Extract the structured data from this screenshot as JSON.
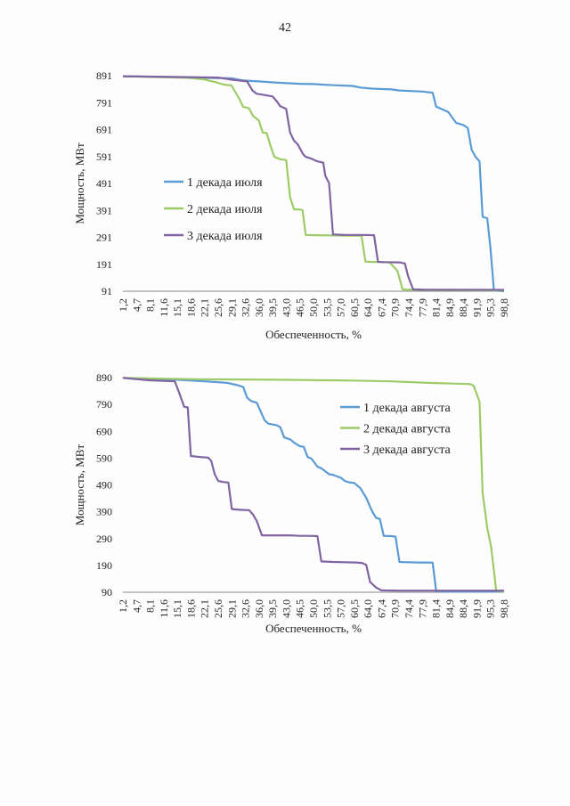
{
  "page_number": "42",
  "chart_data": [
    {
      "type": "line",
      "ylabel": "Мощность, МВт",
      "xlabel": "Обеспеченность, %",
      "y_ticks": [
        "91",
        "191",
        "291",
        "391",
        "491",
        "591",
        "691",
        "791",
        "891"
      ],
      "ylim": [
        91,
        891
      ],
      "x_ticks": [
        "1,2",
        "4,7",
        "8,1",
        "11,6",
        "15,1",
        "18,6",
        "22,1",
        "25,6",
        "29,1",
        "32,6",
        "36,0",
        "39,5",
        "43,0",
        "46,5",
        "50,0",
        "53,5",
        "57,0",
        "60,5",
        "64,0",
        "67,4",
        "70,9",
        "74,4",
        "77,9",
        "81,4",
        "84,9",
        "88,4",
        "91,9",
        "95,3",
        "98,8"
      ],
      "xlim": [
        1.2,
        98.8
      ],
      "legend_position": "center-left",
      "series": [
        {
          "name": "1 декада июля",
          "color": "#5b9bd5",
          "points": [
            [
              1.2,
              889
            ],
            [
              10,
              887
            ],
            [
              20,
              884
            ],
            [
              29.1,
              881
            ],
            [
              32,
              873
            ],
            [
              36,
              870
            ],
            [
              40,
              866
            ],
            [
              46.5,
              861
            ],
            [
              50,
              860
            ],
            [
              53.5,
              857
            ],
            [
              60,
              853
            ],
            [
              62,
              847
            ],
            [
              65,
              843
            ],
            [
              70,
              840
            ],
            [
              72,
              836
            ],
            [
              78,
              832
            ],
            [
              80.5,
              828
            ],
            [
              81.4,
              776
            ],
            [
              83,
              766
            ],
            [
              84.5,
              756
            ],
            [
              86.5,
              716
            ],
            [
              88.4,
              708
            ],
            [
              89.5,
              697
            ],
            [
              90.5,
              616
            ],
            [
              91.5,
              590
            ],
            [
              92.5,
              573
            ],
            [
              93.3,
              367
            ],
            [
              94.5,
              362
            ],
            [
              95.3,
              251
            ],
            [
              96.2,
              94
            ],
            [
              98.8,
              91
            ]
          ]
        },
        {
          "name": "2 декада июля",
          "color": "#9ccb67",
          "points": [
            [
              1.2,
              889
            ],
            [
              18,
              883
            ],
            [
              22,
              877
            ],
            [
              25,
              867
            ],
            [
              27,
              858
            ],
            [
              29,
              855
            ],
            [
              30,
              830
            ],
            [
              31,
              805
            ],
            [
              32,
              775
            ],
            [
              33.5,
              770
            ],
            [
              34.5,
              742
            ],
            [
              36,
              725
            ],
            [
              37,
              680
            ],
            [
              38,
              678
            ],
            [
              39,
              630
            ],
            [
              40,
              590
            ],
            [
              41.5,
              581
            ],
            [
              43,
              578
            ],
            [
              44,
              440
            ],
            [
              45,
              395
            ],
            [
              46.5,
              394
            ],
            [
              47.2,
              392
            ],
            [
              48,
              300
            ],
            [
              51,
              299
            ],
            [
              55,
              298
            ],
            [
              62.3,
              297
            ],
            [
              63.3,
              201
            ],
            [
              64.5,
              200
            ],
            [
              68,
              199
            ],
            [
              69.5,
              198
            ],
            [
              71.5,
              166
            ],
            [
              72.8,
              98
            ],
            [
              74,
              97
            ],
            [
              79,
              96
            ],
            [
              98.8,
              94
            ]
          ]
        },
        {
          "name": "3 декада июля",
          "color": "#8064a2",
          "points": [
            [
              1.2,
              889
            ],
            [
              25.6,
              884
            ],
            [
              29.1,
              876
            ],
            [
              33,
              870
            ],
            [
              34.4,
              835
            ],
            [
              35.5,
              824
            ],
            [
              36.8,
              821
            ],
            [
              39.5,
              814
            ],
            [
              40.5,
              798
            ],
            [
              41.5,
              778
            ],
            [
              43,
              768
            ],
            [
              44,
              680
            ],
            [
              45,
              650
            ],
            [
              46,
              635
            ],
            [
              47.3,
              600
            ],
            [
              48,
              590
            ],
            [
              49.5,
              583
            ],
            [
              51,
              573
            ],
            [
              52.5,
              568
            ],
            [
              53,
              520
            ],
            [
              54,
              492
            ],
            [
              55,
              302
            ],
            [
              58,
              300
            ],
            [
              62,
              300
            ],
            [
              65.5,
              299
            ],
            [
              66.5,
              200
            ],
            [
              68,
              199
            ],
            [
              72,
              198
            ],
            [
              73.4,
              194
            ],
            [
              74.2,
              148
            ],
            [
              75.5,
              98
            ],
            [
              78,
              97
            ],
            [
              98.8,
              96
            ]
          ]
        }
      ]
    },
    {
      "type": "line",
      "ylabel": "Мощность, МВт",
      "xlabel": "Обеспеченность, %",
      "y_ticks": [
        "90",
        "190",
        "290",
        "390",
        "490",
        "590",
        "690",
        "790",
        "890"
      ],
      "ylim": [
        90,
        890
      ],
      "x_ticks": [
        "1,2",
        "4,7",
        "8,1",
        "11,6",
        "15,1",
        "18,6",
        "22,1",
        "25,6",
        "29,1",
        "32,6",
        "36,0",
        "39,5",
        "43,0",
        "46,5",
        "50,0",
        "53,5",
        "57,0",
        "60,5",
        "64,0",
        "67,4",
        "70,9",
        "74,4",
        "77,9",
        "81,4",
        "84,9",
        "88,4",
        "91,9",
        "95,3",
        "98,8"
      ],
      "xlim": [
        1.2,
        98.8
      ],
      "legend_position": "top-right",
      "series": [
        {
          "name": "1 декада августа",
          "color": "#5b9bd5",
          "points": [
            [
              1.2,
              889
            ],
            [
              10,
              885
            ],
            [
              15.1,
              882
            ],
            [
              18.6,
              879
            ],
            [
              22.1,
              876
            ],
            [
              25.6,
              873
            ],
            [
              28,
              870
            ],
            [
              30.5,
              862
            ],
            [
              32,
              855
            ],
            [
              33,
              815
            ],
            [
              34,
              803
            ],
            [
              35.5,
              796
            ],
            [
              37.5,
              730
            ],
            [
              38.5,
              718
            ],
            [
              40.5,
              713
            ],
            [
              41.5,
              705
            ],
            [
              42.5,
              667
            ],
            [
              44,
              660
            ],
            [
              45,
              648
            ],
            [
              46.5,
              634
            ],
            [
              47.5,
              632
            ],
            [
              48.5,
              594
            ],
            [
              49.5,
              588
            ],
            [
              51,
              558
            ],
            [
              52,
              552
            ],
            [
              54,
              530
            ],
            [
              55,
              528
            ],
            [
              56,
              522
            ],
            [
              57,
              517
            ],
            [
              58,
              505
            ],
            [
              59,
              500
            ],
            [
              60.5,
              497
            ],
            [
              62,
              478
            ],
            [
              63.5,
              442
            ],
            [
              65,
              392
            ],
            [
              66,
              368
            ],
            [
              67,
              363
            ],
            [
              68,
              300
            ],
            [
              70,
              299
            ],
            [
              71,
              297
            ],
            [
              72,
              203
            ],
            [
              74,
              202
            ],
            [
              77,
              201
            ],
            [
              79.5,
              201
            ],
            [
              80.5,
              200
            ],
            [
              81.4,
              94
            ],
            [
              85,
              93
            ],
            [
              98.8,
              93
            ]
          ]
        },
        {
          "name": "2 декада августа",
          "color": "#9ccb67",
          "points": [
            [
              1.2,
              889
            ],
            [
              20,
              884
            ],
            [
              40,
              882
            ],
            [
              60,
              879
            ],
            [
              70,
              876
            ],
            [
              80,
              870
            ],
            [
              90,
              866
            ],
            [
              91,
              860
            ],
            [
              92.5,
              800
            ],
            [
              93.3,
              460
            ],
            [
              94.5,
              330
            ],
            [
              95.5,
              258
            ],
            [
              96.8,
              96
            ],
            [
              98.8,
              93
            ]
          ]
        },
        {
          "name": "3 декада августа",
          "color": "#8064a2",
          "points": [
            [
              1.2,
              889
            ],
            [
              8,
              880
            ],
            [
              14.5,
              876
            ],
            [
              15.7,
              830
            ],
            [
              16.9,
              781
            ],
            [
              17.8,
              779
            ],
            [
              18.6,
              598
            ],
            [
              21,
              594
            ],
            [
              23,
              592
            ],
            [
              23.8,
              580
            ],
            [
              24.7,
              530
            ],
            [
              25.6,
              505
            ],
            [
              26.8,
              501
            ],
            [
              28.2,
              499
            ],
            [
              29.1,
              400
            ],
            [
              31.5,
              397
            ],
            [
              33.5,
              396
            ],
            [
              34.5,
              380
            ],
            [
              35.5,
              355
            ],
            [
              36.8,
              302
            ],
            [
              40,
              302
            ],
            [
              44,
              302
            ],
            [
              46.5,
              300
            ],
            [
              49,
              300
            ],
            [
              51,
              299
            ],
            [
              52,
              205
            ],
            [
              55,
              203
            ],
            [
              58,
              202
            ],
            [
              61,
              201
            ],
            [
              62.5,
              199
            ],
            [
              63.5,
              192
            ],
            [
              64.5,
              128
            ],
            [
              66,
              108
            ],
            [
              67.4,
              97
            ],
            [
              72,
              96
            ],
            [
              98.8,
              96
            ]
          ]
        }
      ]
    }
  ]
}
